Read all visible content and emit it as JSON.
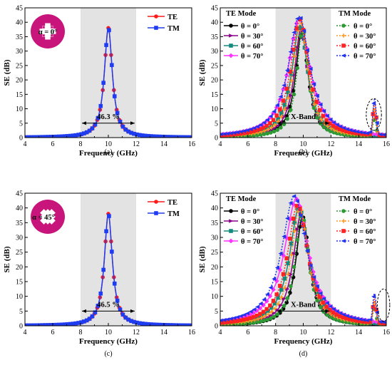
{
  "colors": {
    "band": "#e3e3e3",
    "te_red": "#ff1a1a",
    "tm_blue": "#1f3df0",
    "unit_cell": "#c8157c",
    "theta_colors": [
      "#000000",
      "#8b008b",
      "#128a7d",
      "#ff33ff"
    ],
    "tm_theta_colors": [
      "#2e9a36",
      "#ff9a22",
      "#ff2222",
      "#2233ee"
    ]
  },
  "chart_data": [
    {
      "id": "a",
      "type": "line",
      "caption": "(a)",
      "xlabel": "Frequency (GHz)",
      "ylabel": "SE (dB)",
      "xlim": [
        4,
        16
      ],
      "ylim": [
        0,
        45
      ],
      "xticks": [
        "4",
        "6",
        "8",
        "10",
        "12",
        "14",
        "16"
      ],
      "yticks": [
        "0",
        "5",
        "10",
        "15",
        "20",
        "25",
        "30",
        "35",
        "40",
        "45"
      ],
      "band": [
        8,
        12
      ],
      "band_label": "46.3 %",
      "inset_label": "α = 0°",
      "legend": [
        {
          "label": "TE",
          "color": "#ff1a1a",
          "marker": "circle",
          "style": "solid"
        },
        {
          "label": "TM",
          "color": "#1f3df0",
          "marker": "square",
          "style": "solid"
        }
      ],
      "series": [
        {
          "name": "TE",
          "color": "#ff1a1a",
          "marker": "circle",
          "dash": "",
          "f0": 10.0,
          "peak": 38.0,
          "gamma": 0.35
        },
        {
          "name": "TM",
          "color": "#1f3df0",
          "marker": "square",
          "dash": "",
          "f0": 10.0,
          "peak": 38.0,
          "gamma": 0.35
        }
      ]
    },
    {
      "id": "b",
      "type": "line",
      "caption": "(b)",
      "xlabel": "Frequency (GHz)",
      "ylabel": "SE (dB)",
      "xlim": [
        4,
        16
      ],
      "ylim": [
        0,
        45
      ],
      "xticks": [
        "4",
        "6",
        "8",
        "10",
        "12",
        "14",
        "16"
      ],
      "yticks": [
        "0",
        "5",
        "10",
        "15",
        "20",
        "25",
        "30",
        "35",
        "40",
        "45"
      ],
      "band": [
        8,
        12
      ],
      "band_label": "X-Band",
      "highlight": {
        "x": 15.1,
        "y": 8,
        "rx": 0.55,
        "ry": 5.5
      },
      "legend_groups": [
        {
          "title": "TE Mode",
          "items": [
            {
              "label": "θ = 0°",
              "color": "#000000",
              "marker": "circle",
              "style": "solid"
            },
            {
              "label": "θ = 30°",
              "color": "#8b008b",
              "marker": "triangle-right",
              "style": "solid"
            },
            {
              "label": "θ = 60°",
              "color": "#128a7d",
              "marker": "square",
              "style": "solid"
            },
            {
              "label": "θ = 70°",
              "color": "#ff33ff",
              "marker": "diamond",
              "style": "solid"
            }
          ]
        },
        {
          "title": "TM Mode",
          "items": [
            {
              "label": "θ = 0°",
              "color": "#2e9a36",
              "marker": "circle",
              "style": "dotted"
            },
            {
              "label": "θ = 30°",
              "color": "#ff9a22",
              "marker": "plus",
              "style": "dotted"
            },
            {
              "label": "θ = 60°",
              "color": "#ff2222",
              "marker": "square",
              "style": "dotted"
            },
            {
              "label": "θ = 70°",
              "color": "#2233ee",
              "marker": "triangle-left",
              "style": "dotted"
            }
          ]
        }
      ],
      "series": [
        {
          "name": "TE θ = 0°",
          "color": "#000000",
          "marker": "circle",
          "dash": "",
          "f0": 9.9,
          "peak": 37.0,
          "gamma": 0.55,
          "hp": 0
        },
        {
          "name": "TE θ = 30°",
          "color": "#8b008b",
          "marker": "triangle-right",
          "dash": "",
          "f0": 9.85,
          "peak": 38.0,
          "gamma": 0.6,
          "hp": 0
        },
        {
          "name": "TE θ = 60°",
          "color": "#128a7d",
          "marker": "square",
          "dash": "",
          "f0": 9.75,
          "peak": 39.0,
          "gamma": 0.7,
          "hp": 0
        },
        {
          "name": "TE θ = 70°",
          "color": "#ff33ff",
          "marker": "diamond",
          "dash": "",
          "f0": 9.7,
          "peak": 41.0,
          "gamma": 0.95,
          "hp": 0
        },
        {
          "name": "TM θ = 0°",
          "color": "#2e9a36",
          "marker": "circle",
          "dash": "2,2",
          "f0": 9.95,
          "peak": 38.0,
          "gamma": 0.5,
          "hp": 6.5
        },
        {
          "name": "TM θ = 30°",
          "color": "#ff9a22",
          "marker": "plus",
          "dash": "2,2",
          "f0": 9.8,
          "peak": 40.0,
          "gamma": 0.65,
          "hp": 9
        },
        {
          "name": "TM θ = 60°",
          "color": "#ff2222",
          "marker": "square",
          "dash": "2,2",
          "f0": 9.75,
          "peak": 41.0,
          "gamma": 0.8,
          "hp": 11
        },
        {
          "name": "TM θ = 70°",
          "color": "#2233ee",
          "marker": "triangle-left",
          "dash": "2,2",
          "f0": 9.7,
          "peak": 42.0,
          "gamma": 0.95,
          "hp": 12
        }
      ]
    },
    {
      "id": "c",
      "type": "line",
      "caption": "(c)",
      "xlabel": "Frequency (GHz)",
      "ylabel": "SE (dB)",
      "xlim": [
        4,
        16
      ],
      "ylim": [
        0,
        45
      ],
      "xticks": [
        "4",
        "6",
        "8",
        "10",
        "12",
        "14",
        "16"
      ],
      "yticks": [
        "0",
        "5",
        "10",
        "15",
        "20",
        "25",
        "30",
        "35",
        "40",
        "45"
      ],
      "band": [
        8,
        12
      ],
      "band_label": "46.5 %",
      "inset_label": "α = 45°",
      "legend": [
        {
          "label": "TE",
          "color": "#ff1a1a",
          "marker": "circle",
          "style": "solid"
        },
        {
          "label": "TM",
          "color": "#1f3df0",
          "marker": "square",
          "style": "solid"
        }
      ],
      "series": [
        {
          "name": "TE",
          "color": "#ff1a1a",
          "marker": "circle",
          "dash": "",
          "f0": 10.0,
          "peak": 38.0,
          "gamma": 0.35
        },
        {
          "name": "TM",
          "color": "#1f3df0",
          "marker": "square",
          "dash": "",
          "f0": 10.0,
          "peak": 38.0,
          "gamma": 0.35
        }
      ]
    },
    {
      "id": "d",
      "type": "line",
      "caption": "(d)",
      "xlabel": "Frequency (GHz)",
      "ylabel": "SE (dB)",
      "xlim": [
        4,
        16
      ],
      "ylim": [
        0,
        45
      ],
      "xticks": [
        "4",
        "6",
        "8",
        "10",
        "12",
        "14",
        "16"
      ],
      "yticks": [
        "0",
        "5",
        "10",
        "15",
        "20",
        "25",
        "30",
        "35",
        "40",
        "45"
      ],
      "band": [
        8,
        12
      ],
      "band_label": "X-Band",
      "highlight": {
        "x": 15.8,
        "y": 7,
        "rx": 0.45,
        "ry": 5.5
      },
      "legend_groups": [
        {
          "title": "TE Mode",
          "items": [
            {
              "label": "θ = 0°",
              "color": "#000000",
              "marker": "circle",
              "style": "solid"
            },
            {
              "label": "θ = 30°",
              "color": "#8b008b",
              "marker": "triangle-right",
              "style": "solid"
            },
            {
              "label": "θ = 60°",
              "color": "#128a7d",
              "marker": "square",
              "style": "solid"
            },
            {
              "label": "θ = 70°",
              "color": "#ff33ff",
              "marker": "diamond",
              "style": "solid"
            }
          ]
        },
        {
          "title": "TM Mode",
          "items": [
            {
              "label": "θ = 0°",
              "color": "#2e9a36",
              "marker": "circle",
              "style": "dotted"
            },
            {
              "label": "θ = 30°",
              "color": "#ff9a22",
              "marker": "plus",
              "style": "dotted"
            },
            {
              "label": "θ = 60°",
              "color": "#ff2222",
              "marker": "square",
              "style": "dotted"
            },
            {
              "label": "θ = 70°",
              "color": "#2233ee",
              "marker": "triangle-left",
              "style": "dotted"
            }
          ]
        }
      ],
      "series": [
        {
          "name": "TE θ = 0°",
          "color": "#000000",
          "marker": "circle",
          "dash": "",
          "f0": 9.95,
          "peak": 37.0,
          "gamma": 0.6,
          "hp": 0
        },
        {
          "name": "TE θ = 30°",
          "color": "#8b008b",
          "marker": "triangle-right",
          "dash": "",
          "f0": 9.85,
          "peak": 38.0,
          "gamma": 0.7,
          "hp": 0
        },
        {
          "name": "TE θ = 60°",
          "color": "#128a7d",
          "marker": "square",
          "dash": "",
          "f0": 9.7,
          "peak": 40.0,
          "gamma": 0.85,
          "hp": 0
        },
        {
          "name": "TE θ = 70°",
          "color": "#ff33ff",
          "marker": "diamond",
          "dash": "",
          "f0": 9.5,
          "peak": 43.0,
          "gamma": 1.05,
          "hp": 0
        },
        {
          "name": "TM θ = 0°",
          "color": "#2e9a36",
          "marker": "circle",
          "dash": "2,2",
          "f0": 9.9,
          "peak": 38.0,
          "gamma": 0.6,
          "hp": 6
        },
        {
          "name": "TM θ = 30°",
          "color": "#ff9a22",
          "marker": "plus",
          "dash": "2,2",
          "f0": 9.75,
          "peak": 40.0,
          "gamma": 0.75,
          "hp": 7
        },
        {
          "name": "TM θ = 60°",
          "color": "#ff2222",
          "marker": "square",
          "dash": "2,2",
          "f0": 9.6,
          "peak": 41.0,
          "gamma": 0.9,
          "hp": 8
        },
        {
          "name": "TM θ = 70°",
          "color": "#2233ee",
          "marker": "triangle-left",
          "dash": "2,2",
          "f0": 9.35,
          "peak": 44.0,
          "gamma": 1.1,
          "hp": 9.5
        }
      ]
    }
  ]
}
